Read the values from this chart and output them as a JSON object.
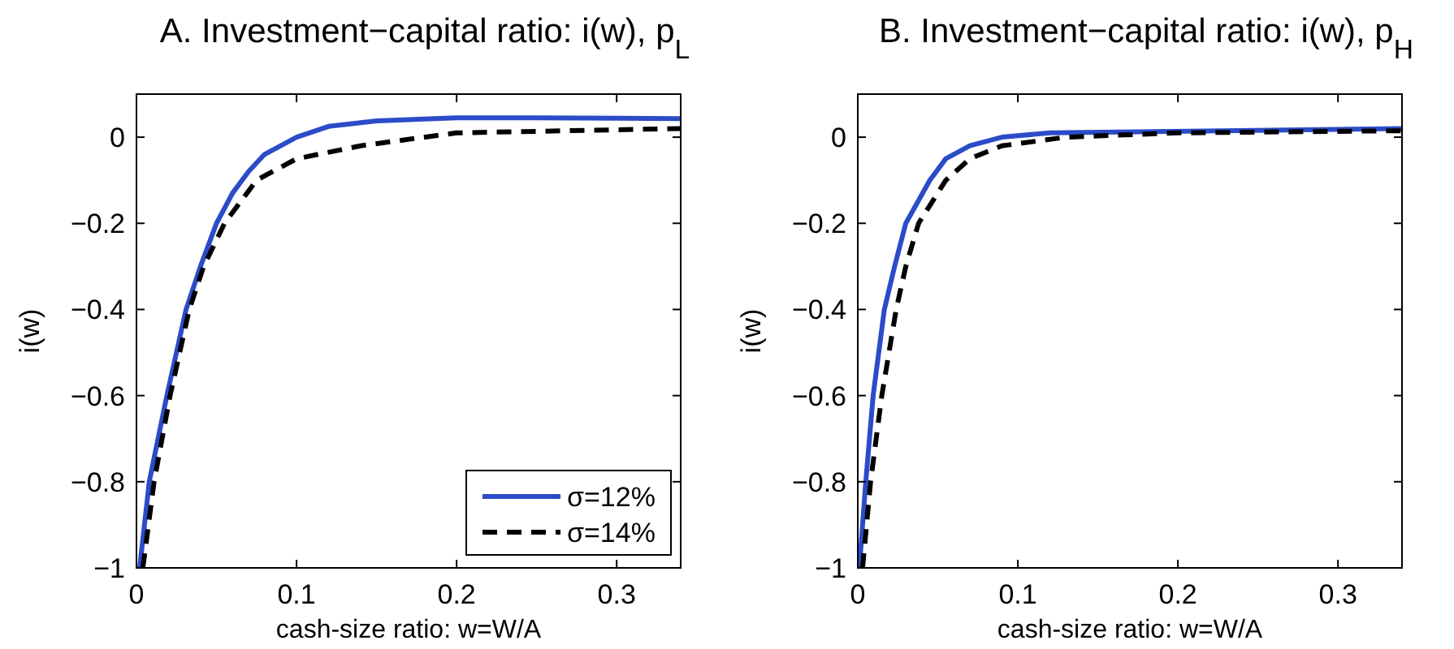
{
  "chart_data": [
    {
      "type": "line",
      "title": "A. Investment−capital ratio: i(w), p$_{L}$",
      "xlabel": "cash-size ratio: w=W/A",
      "ylabel": "i(w)",
      "xlim": [
        0,
        0.34
      ],
      "ylim": [
        -1,
        0.1
      ],
      "xticks": [
        0,
        0.1,
        0.2,
        0.3
      ],
      "yticks": [
        -1,
        -0.8,
        -0.6,
        -0.4,
        -0.2,
        0
      ],
      "grid": false,
      "legend": "bottom right",
      "series": [
        {
          "name": "σ=12%",
          "color": "#2b4cc8",
          "line_style": "solid",
          "x": [
            0.002,
            0.008,
            0.019,
            0.031,
            0.04,
            0.05,
            0.06,
            0.07,
            0.08,
            0.1,
            0.12,
            0.15,
            0.2,
            0.25,
            0.34
          ],
          "values": [
            -1,
            -0.8,
            -0.6,
            -0.4,
            -0.3,
            -0.2,
            -0.13,
            -0.08,
            -0.04,
            0.0,
            0.025,
            0.038,
            0.045,
            0.045,
            0.043
          ]
        },
        {
          "name": "σ=14%",
          "color": "#000000",
          "line_style": "dashed",
          "x": [
            0.004,
            0.011,
            0.021,
            0.033,
            0.042,
            0.055,
            0.075,
            0.1,
            0.14,
            0.2,
            0.34
          ],
          "values": [
            -1,
            -0.8,
            -0.6,
            -0.4,
            -0.3,
            -0.2,
            -0.1,
            -0.05,
            -0.02,
            0.01,
            0.02
          ]
        }
      ]
    },
    {
      "type": "line",
      "title": "B. Investment−capital ratio: i(w), p$_{H}$",
      "xlabel": "cash-size ratio: w=W/A",
      "ylabel": "i(w)",
      "xlim": [
        0,
        0.34
      ],
      "ylim": [
        -1,
        0.1
      ],
      "xticks": [
        0,
        0.1,
        0.2,
        0.3
      ],
      "yticks": [
        -1,
        -0.8,
        -0.6,
        -0.4,
        -0.2,
        0
      ],
      "grid": false,
      "legend": false,
      "series": [
        {
          "color": "#2b4cc8",
          "line_style": "solid",
          "x": [
            0.001,
            0.005,
            0.0096,
            0.0166,
            0.023,
            0.03,
            0.045,
            0.055,
            0.07,
            0.09,
            0.12,
            0.34
          ],
          "values": [
            -1,
            -0.8,
            -0.6,
            -0.4,
            -0.3,
            -0.2,
            -0.1,
            -0.05,
            -0.02,
            0,
            0.01,
            0.02
          ]
        },
        {
          "color": "#000000",
          "line_style": "dashed",
          "x": [
            0.003,
            0.008,
            0.015,
            0.024,
            0.03,
            0.038,
            0.055,
            0.07,
            0.09,
            0.13,
            0.2,
            0.34
          ],
          "values": [
            -1,
            -0.8,
            -0.6,
            -0.4,
            -0.3,
            -0.2,
            -0.1,
            -0.05,
            -0.02,
            0,
            0.01,
            0.015
          ]
        }
      ]
    }
  ]
}
